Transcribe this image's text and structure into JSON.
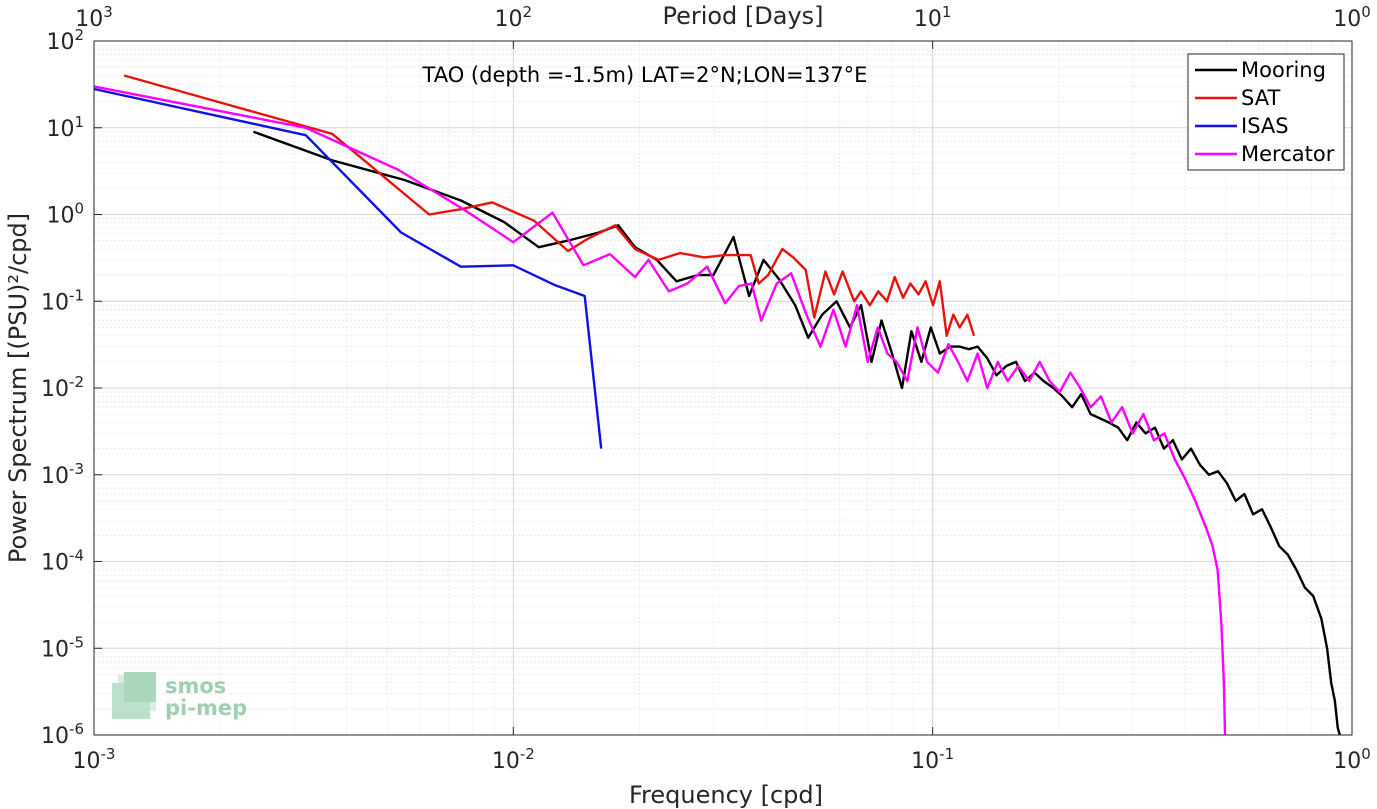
{
  "chart_data": {
    "type": "line",
    "title": "TAO (depth =-1.5m) LAT=2°N;LON=137°E",
    "xlabel": "Frequency [cpd]",
    "ylabel": "Power Spectrum [(PSU)²/cpd]",
    "top_xlabel": "Period [Days]",
    "xscale": "log",
    "yscale": "log",
    "xlim": [
      0.001,
      1
    ],
    "ylim": [
      1e-06,
      100
    ],
    "grid": true,
    "legend_position": "top-right",
    "x_ticks": [
      {
        "base": "10",
        "exp": "-3",
        "value": 0.001
      },
      {
        "base": "10",
        "exp": "-2",
        "value": 0.01
      },
      {
        "base": "10",
        "exp": "-1",
        "value": 0.1
      },
      {
        "base": "10",
        "exp": "0",
        "value": 1
      }
    ],
    "y_ticks": [
      {
        "base": "10",
        "exp": "2",
        "value": 100
      },
      {
        "base": "10",
        "exp": "1",
        "value": 10
      },
      {
        "base": "10",
        "exp": "0",
        "value": 1
      },
      {
        "base": "10",
        "exp": "-1",
        "value": 0.1
      },
      {
        "base": "10",
        "exp": "-2",
        "value": 0.01
      },
      {
        "base": "10",
        "exp": "-3",
        "value": 0.001
      },
      {
        "base": "10",
        "exp": "-4",
        "value": 0.0001
      },
      {
        "base": "10",
        "exp": "-5",
        "value": 1e-05
      },
      {
        "base": "10",
        "exp": "-6",
        "value": 1e-06
      }
    ],
    "top_ticks": [
      {
        "base": "10",
        "exp": "3",
        "value": 0.001
      },
      {
        "base": "10",
        "exp": "2",
        "value": 0.01
      },
      {
        "base": "10",
        "exp": "1",
        "value": 0.1
      },
      {
        "base": "10",
        "exp": "0",
        "value": 1
      }
    ],
    "series": [
      {
        "name": "Mooring",
        "color": "#000000",
        "x": [
          0.0024,
          0.0037,
          0.0055,
          0.0075,
          0.0095,
          0.0115,
          0.0135,
          0.016,
          0.0178,
          0.0195,
          0.022,
          0.0245,
          0.0275,
          0.03,
          0.0335,
          0.0365,
          0.0395,
          0.043,
          0.047,
          0.0505,
          0.0545,
          0.059,
          0.0635,
          0.0675,
          0.0715,
          0.0755,
          0.08,
          0.0845,
          0.089,
          0.094,
          0.099,
          0.104,
          0.11,
          0.116,
          0.122,
          0.128,
          0.135,
          0.142,
          0.15,
          0.158,
          0.166,
          0.175,
          0.184,
          0.194,
          0.204,
          0.215,
          0.226,
          0.238,
          0.25,
          0.263,
          0.277,
          0.291,
          0.306,
          0.322,
          0.339,
          0.356,
          0.374,
          0.393,
          0.413,
          0.434,
          0.456,
          0.479,
          0.503,
          0.528,
          0.554,
          0.581,
          0.61,
          0.64,
          0.671,
          0.703,
          0.737,
          0.772,
          0.808,
          0.845,
          0.872,
          0.892,
          0.91,
          0.925,
          0.935
        ],
        "y": [
          9,
          4.2,
          2.5,
          1.45,
          0.82,
          0.42,
          0.5,
          0.62,
          0.75,
          0.42,
          0.3,
          0.17,
          0.2,
          0.2,
          0.55,
          0.115,
          0.3,
          0.18,
          0.09,
          0.038,
          0.07,
          0.1,
          0.05,
          0.09,
          0.02,
          0.06,
          0.025,
          0.01,
          0.045,
          0.02,
          0.05,
          0.025,
          0.03,
          0.03,
          0.028,
          0.03,
          0.022,
          0.014,
          0.018,
          0.02,
          0.012,
          0.015,
          0.012,
          0.01,
          0.008,
          0.006,
          0.0085,
          0.005,
          0.0045,
          0.004,
          0.0035,
          0.0025,
          0.004,
          0.003,
          0.0035,
          0.002,
          0.0025,
          0.0015,
          0.002,
          0.0013,
          0.001,
          0.0011,
          0.0008,
          0.0005,
          0.0006,
          0.00035,
          0.0004,
          0.00025,
          0.00015,
          0.00012,
          8e-05,
          5e-05,
          4e-05,
          2.2e-05,
          1e-05,
          4e-06,
          2.5e-06,
          1.2e-06,
          1e-06
        ]
      },
      {
        "name": "SAT",
        "color": "#e8130a",
        "x": [
          0.00118,
          0.0037,
          0.0063,
          0.0075,
          0.0089,
          0.0112,
          0.0135,
          0.015,
          0.0175,
          0.0195,
          0.0222,
          0.025,
          0.0285,
          0.032,
          0.0368,
          0.0385,
          0.0405,
          0.0438,
          0.0465,
          0.0498,
          0.0522,
          0.0555,
          0.0582,
          0.061,
          0.065,
          0.0675,
          0.0708,
          0.0742,
          0.0778,
          0.0812,
          0.085,
          0.0885,
          0.0925,
          0.0962,
          0.1002,
          0.104,
          0.108,
          0.112,
          0.116,
          0.121,
          0.1255
        ],
        "y": [
          40,
          8.5,
          1.0,
          1.15,
          1.38,
          0.85,
          0.38,
          0.52,
          0.75,
          0.4,
          0.3,
          0.36,
          0.32,
          0.34,
          0.34,
          0.16,
          0.2,
          0.4,
          0.32,
          0.23,
          0.065,
          0.22,
          0.12,
          0.22,
          0.1,
          0.13,
          0.09,
          0.13,
          0.1,
          0.19,
          0.11,
          0.16,
          0.12,
          0.17,
          0.09,
          0.17,
          0.04,
          0.07,
          0.05,
          0.07,
          0.04
        ]
      },
      {
        "name": "ISAS",
        "color": "#1010e8",
        "x": [
          0.001,
          0.0032,
          0.0054,
          0.0075,
          0.01,
          0.0125,
          0.0148,
          0.0162
        ],
        "y": [
          28,
          8.2,
          0.62,
          0.25,
          0.26,
          0.155,
          0.115,
          0.002
        ]
      },
      {
        "name": "Mercator",
        "color": "#ff00ff",
        "x": [
          0.001,
          0.0032,
          0.0053,
          0.0075,
          0.01,
          0.0124,
          0.0147,
          0.017,
          0.0195,
          0.021,
          0.0235,
          0.026,
          0.029,
          0.032,
          0.0345,
          0.037,
          0.039,
          0.0425,
          0.046,
          0.05,
          0.054,
          0.058,
          0.062,
          0.066,
          0.07,
          0.074,
          0.078,
          0.082,
          0.087,
          0.092,
          0.097,
          0.103,
          0.109,
          0.115,
          0.121,
          0.128,
          0.135,
          0.143,
          0.151,
          0.16,
          0.17,
          0.18,
          0.19,
          0.201,
          0.213,
          0.225,
          0.238,
          0.252,
          0.267,
          0.283,
          0.3,
          0.318,
          0.337,
          0.357,
          0.378,
          0.4,
          0.423,
          0.448,
          0.465,
          0.478,
          0.488,
          0.495,
          0.498
        ],
        "y": [
          30,
          10,
          3.3,
          1.2,
          0.48,
          1.05,
          0.26,
          0.35,
          0.19,
          0.3,
          0.13,
          0.16,
          0.25,
          0.095,
          0.15,
          0.16,
          0.06,
          0.16,
          0.21,
          0.07,
          0.03,
          0.08,
          0.03,
          0.09,
          0.02,
          0.05,
          0.025,
          0.02,
          0.012,
          0.05,
          0.02,
          0.015,
          0.032,
          0.02,
          0.012,
          0.025,
          0.01,
          0.02,
          0.012,
          0.018,
          0.012,
          0.02,
          0.012,
          0.009,
          0.015,
          0.01,
          0.006,
          0.008,
          0.004,
          0.006,
          0.003,
          0.005,
          0.0025,
          0.003,
          0.0015,
          0.0009,
          0.0005,
          0.00025,
          0.00015,
          8e-05,
          2e-05,
          4e-06,
          1e-06
        ]
      }
    ]
  },
  "logo": {
    "line1": "smos",
    "line2": "pi-mep"
  }
}
